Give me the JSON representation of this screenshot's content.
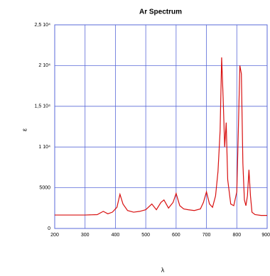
{
  "chart_data": {
    "type": "line",
    "title": "Ar Spectrum",
    "x_label": "λ",
    "y_label": "ε",
    "x": [
      200,
      250,
      300,
      340,
      360,
      375,
      390,
      405,
      415,
      425,
      440,
      460,
      480,
      500,
      520,
      535,
      550,
      560,
      575,
      590,
      600,
      612,
      625,
      640,
      660,
      680,
      690,
      700,
      710,
      720,
      730,
      738,
      745,
      750,
      755,
      760,
      765,
      770,
      780,
      790,
      800,
      805,
      810,
      815,
      820,
      825,
      830,
      835,
      840,
      845,
      850,
      860,
      880,
      900
    ],
    "series": [
      {
        "name": "Ar",
        "color": "#d81010",
        "values": [
          1650,
          1650,
          1650,
          1700,
          2100,
          1800,
          2000,
          2600,
          4200,
          3000,
          2200,
          2000,
          2100,
          2300,
          3000,
          2300,
          3200,
          3500,
          2500,
          3200,
          4300,
          2800,
          2400,
          2300,
          2200,
          2400,
          3200,
          4500,
          3000,
          2600,
          4000,
          7000,
          12000,
          21000,
          16000,
          10000,
          13000,
          6000,
          3000,
          2800,
          4500,
          12000,
          20000,
          19000,
          8000,
          3500,
          2800,
          4000,
          7200,
          4000,
          2000,
          1700,
          1600,
          1600
        ]
      }
    ],
    "xlim": [
      200,
      900
    ],
    "xticks": [
      200,
      300,
      400,
      500,
      600,
      700,
      800,
      900
    ],
    "ylim": [
      0,
      25000
    ],
    "yticks": [
      0,
      5000,
      {
        "value": 10000,
        "label": "1 10⁴"
      },
      {
        "value": 15000,
        "label": "1,5 10⁴"
      },
      {
        "value": 20000,
        "label": "2 10⁴"
      },
      {
        "value": 25000,
        "label": "2,5 10⁴"
      }
    ],
    "grid": true,
    "grid_color": "#5a6ad8"
  }
}
